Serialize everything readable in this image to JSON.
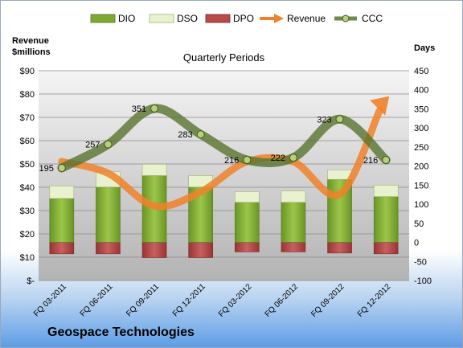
{
  "company_name": "Geospace Technologies",
  "chart_data": {
    "type": "bar",
    "title": "Quarterly Periods",
    "ylabel_left": "Revenue\n$millions",
    "ylabel_right": "Days",
    "categories": [
      "FQ 03-2011",
      "FQ 06-2011",
      "FQ 09-2011",
      "FQ 12-2011",
      "FQ 03-2012",
      "FQ 06-2012",
      "FQ 09-2012",
      "FQ 12-2012"
    ],
    "series": [
      {
        "name": "DIO",
        "axis": "right",
        "kind": "stacked-bar",
        "values": [
          115,
          145,
          175,
          145,
          105,
          105,
          165,
          120
        ]
      },
      {
        "name": "DSO",
        "axis": "right",
        "kind": "stacked-bar",
        "values": [
          33,
          40,
          30,
          30,
          28,
          30,
          25,
          30
        ]
      },
      {
        "name": "DPO",
        "axis": "right",
        "kind": "negative-bar",
        "values": [
          -30,
          -30,
          -40,
          -40,
          -25,
          -25,
          -28,
          -30
        ]
      },
      {
        "name": "Revenue",
        "axis": "left",
        "kind": "line",
        "values": [
          51,
          46,
          32,
          38,
          51,
          51,
          37,
          77
        ]
      },
      {
        "name": "CCC",
        "axis": "right",
        "kind": "line",
        "values": [
          195,
          257,
          351,
          283,
          216,
          222,
          323,
          216
        ]
      }
    ],
    "data_labels": [
      "195",
      "257",
      "351",
      "283",
      "216",
      "222",
      "323",
      "216"
    ],
    "ylim_left": [
      0,
      90
    ],
    "ylim_right": [
      -100,
      450
    ],
    "yticks_left": [
      "$-",
      "$10",
      "$20",
      "$30",
      "$40",
      "$50",
      "$60",
      "$70",
      "$80",
      "$90"
    ],
    "yticks_right": [
      "-100",
      "-50",
      "0",
      "50",
      "100",
      "150",
      "200",
      "250",
      "300",
      "350",
      "400",
      "450"
    ],
    "legend_position": "top",
    "grid": true,
    "colors": {
      "DIO": "#7fa832",
      "DSO": "#e9f2cf",
      "DPO": "#b84a4a",
      "Revenue": "#f0812a",
      "CCC": "#57742f"
    }
  }
}
